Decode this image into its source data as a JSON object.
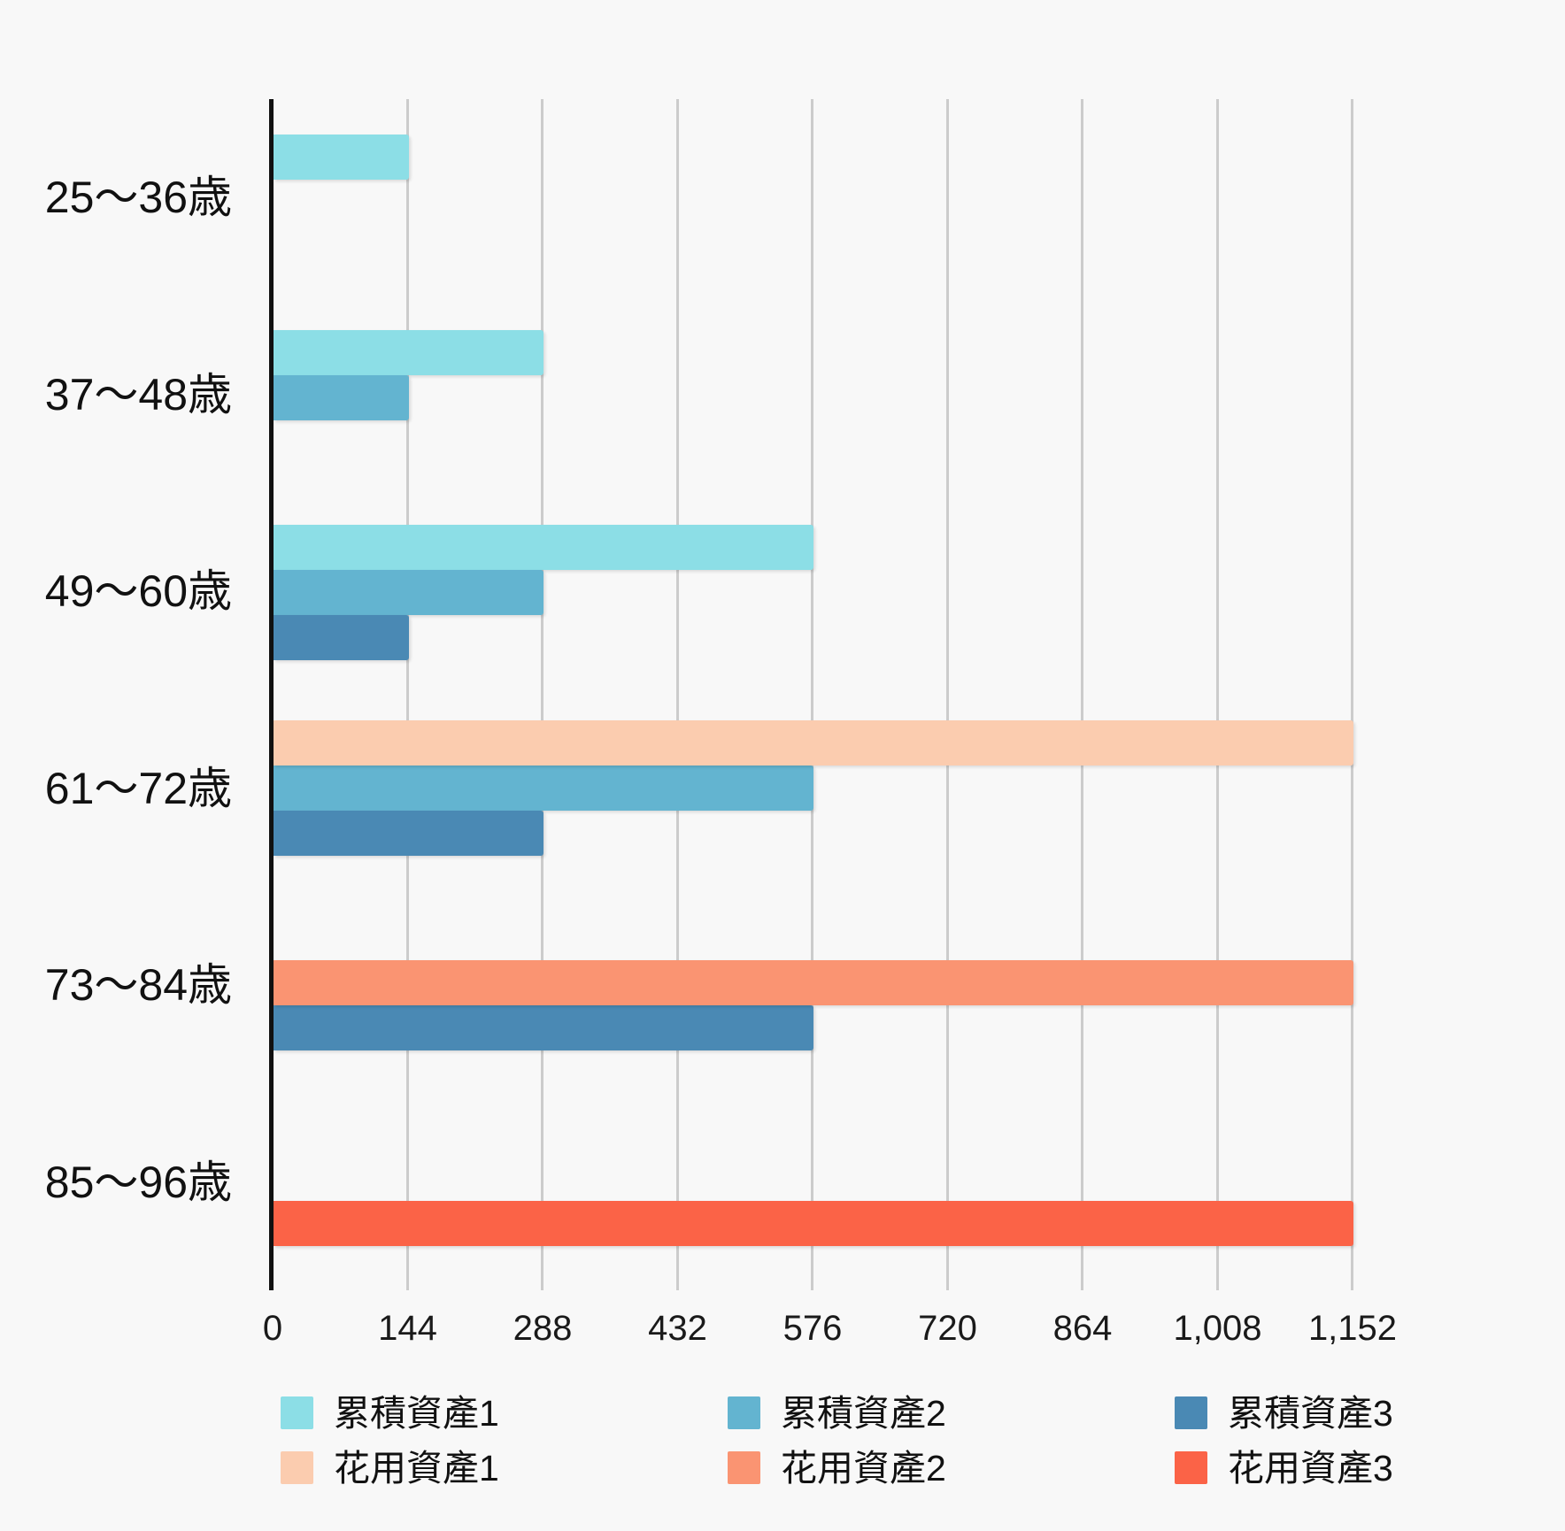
{
  "page": {
    "background": "#F8F8F8"
  },
  "chart_data": {
    "type": "bar",
    "orientation": "horizontal",
    "title": "",
    "categories": [
      "25〜36歳",
      "37〜48歳",
      "49〜60歳",
      "61〜72歳",
      "73〜84歳",
      "85〜96歳"
    ],
    "series": [
      {
        "name": "累積資產1",
        "color": "#8CDEE6",
        "values": [
          144,
          288,
          576,
          0,
          0,
          0
        ]
      },
      {
        "name": "累積資產2",
        "color": "#63B4D0",
        "values": [
          0,
          144,
          288,
          576,
          0,
          0
        ]
      },
      {
        "name": "累積資產3",
        "color": "#4A89B4",
        "values": [
          0,
          0,
          144,
          288,
          576,
          0
        ]
      },
      {
        "name": "花用資產1",
        "color": "#FBCCAF",
        "values": [
          0,
          0,
          0,
          1152,
          0,
          0
        ]
      },
      {
        "name": "花用資產2",
        "color": "#FA9472",
        "values": [
          0,
          0,
          0,
          0,
          1152,
          0
        ]
      },
      {
        "name": "花用資產3",
        "color": "#FB6347",
        "values": [
          0,
          0,
          0,
          0,
          0,
          1152
        ]
      }
    ],
    "x_ticks": [
      "0",
      "144",
      "288",
      "432",
      "576",
      "720",
      "864",
      "1,008",
      "1,152"
    ],
    "x_tick_values": [
      0,
      144,
      288,
      432,
      576,
      720,
      864,
      1008,
      1152
    ],
    "xlim": [
      0,
      1152
    ],
    "grid": true,
    "legend_position": "bottom",
    "axis_color": "#111111",
    "gridline_color": "#CCCCCC",
    "label_color": "#111111"
  }
}
